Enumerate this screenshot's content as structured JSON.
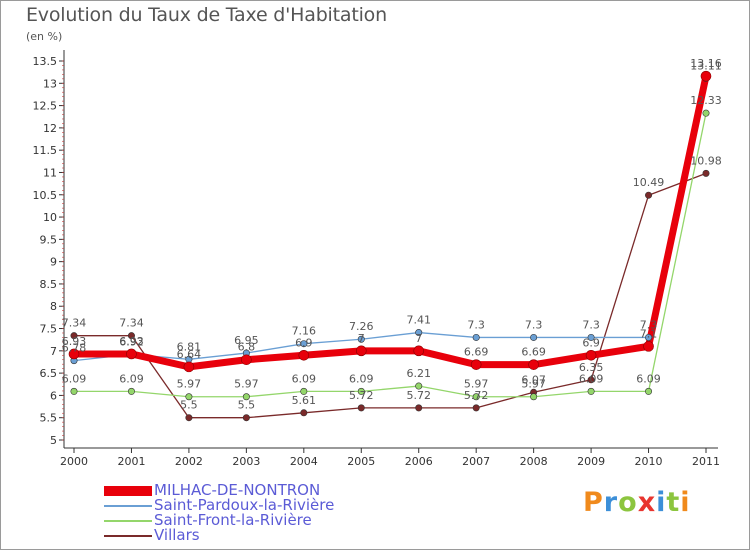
{
  "title": "Evolution du Taux de Taxe d'Habitation",
  "unit_label": "(en %)",
  "brand": {
    "text": "Proxiti",
    "letter_colors": [
      "#f08a1c",
      "#3c8fd8",
      "#8cc53f",
      "#e8352f",
      "#3c8fd8",
      "#8cc53f",
      "#f08a1c"
    ]
  },
  "chart_data": {
    "type": "line",
    "x": [
      "2000",
      "2001",
      "2002",
      "2003",
      "2004",
      "2005",
      "2006",
      "2007",
      "2008",
      "2009",
      "2010",
      "2011"
    ],
    "ylim": [
      5,
      13.5
    ],
    "yticks": [
      "5",
      "5.5",
      "6",
      "6.5",
      "7",
      "7.5",
      "8",
      "8.5",
      "9",
      "9.5",
      "10",
      "10.5",
      "11",
      "11.5",
      "12",
      "12.5",
      "13",
      "13.5"
    ],
    "grid": false,
    "legend_position": "bottom-left",
    "series": [
      {
        "name": "MILHAC-DE-NONTRON",
        "color": "#e8000b",
        "values": [
          6.93,
          6.93,
          6.64,
          6.8,
          6.9,
          7.0,
          7.0,
          6.69,
          6.69,
          6.9,
          7.1,
          13.16
        ],
        "labels": [
          "6.93",
          "6.93",
          "6.64",
          "6.8",
          "6.9",
          "7",
          "7",
          "6.69",
          "6.69",
          "6.9",
          "7.1",
          "13.16"
        ]
      },
      {
        "name": "Saint-Pardoux-la-Rivière",
        "color": "#6a9fd4",
        "values": [
          6.78,
          6.92,
          6.81,
          6.95,
          7.16,
          7.26,
          7.41,
          7.3,
          7.3,
          7.3,
          7.3,
          13.11
        ],
        "labels": [
          "6.78",
          "6.92",
          "6.81",
          "6.95",
          "7.16",
          "7.26",
          "7.41",
          "7.3",
          "7.3",
          "7.3",
          "7.3",
          "13.11"
        ]
      },
      {
        "name": "Saint-Front-la-Rivière",
        "color": "#94d66b",
        "values": [
          6.09,
          6.09,
          5.97,
          5.97,
          6.09,
          6.09,
          6.21,
          5.97,
          5.97,
          6.09,
          6.09,
          12.33
        ],
        "labels": [
          "6.09",
          "6.09",
          "5.97",
          "5.97",
          "6.09",
          "6.09",
          "6.21",
          "5.97",
          "5.97",
          "6.09",
          "6.09",
          "12.33"
        ]
      },
      {
        "name": "Villars",
        "color": "#7a2a2a",
        "values": [
          7.34,
          7.34,
          5.5,
          5.5,
          5.61,
          5.72,
          5.72,
          5.72,
          6.07,
          6.35,
          10.49,
          10.98
        ],
        "labels": [
          "7.34",
          "7.34",
          "5.5",
          "5.5",
          "5.61",
          "5.72",
          "5.72",
          "5.72",
          "6.07",
          "6.35",
          "10.49",
          "10.98"
        ]
      }
    ]
  }
}
